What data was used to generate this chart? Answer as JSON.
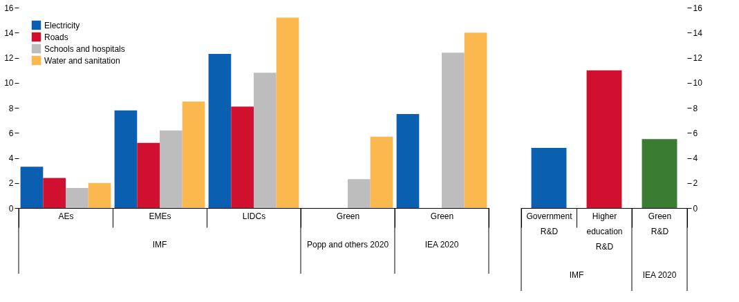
{
  "chart_data": [
    {
      "type": "bar",
      "categories": [
        "AEs",
        "EMEs",
        "LIDCs",
        "Green",
        "Green"
      ],
      "series": [
        {
          "name": "Electricity",
          "color": "#0a5fb0",
          "values": [
            3.3,
            7.8,
            12.3,
            null,
            7.5
          ]
        },
        {
          "name": "Roads",
          "color": "#d0102e",
          "values": [
            2.4,
            5.2,
            8.1,
            null,
            null
          ]
        },
        {
          "name": "Schools and hospitals",
          "color": "#bdbdbd",
          "values": [
            1.6,
            6.2,
            10.8,
            2.3,
            12.4
          ]
        },
        {
          "name": "Water and sanitation",
          "color": "#fbb84f",
          "values": [
            2.0,
            8.5,
            15.2,
            5.7,
            14.0
          ]
        }
      ],
      "ylim": [
        0,
        16
      ],
      "yticks": [
        0,
        2,
        4,
        6,
        8,
        10,
        12,
        14,
        16
      ],
      "grid": false,
      "legend": "top left",
      "annotations": [
        "IMF",
        "Popp and others 2020",
        "IEA 2020"
      ]
    },
    {
      "type": "bar",
      "categories": [
        "Government R&D",
        "Higher education R&D",
        "Green R&D"
      ],
      "values": [
        4.8,
        11.0,
        5.5
      ],
      "colors": [
        "#0a5fb0",
        "#d0102e",
        "#3a7d32"
      ],
      "ylim": [
        0,
        16
      ],
      "yticks": [
        0,
        2,
        4,
        6,
        8,
        10,
        12,
        14,
        16
      ],
      "grid": false,
      "legend": false,
      "annotations": [
        "IMF",
        "IEA 2020"
      ]
    }
  ]
}
